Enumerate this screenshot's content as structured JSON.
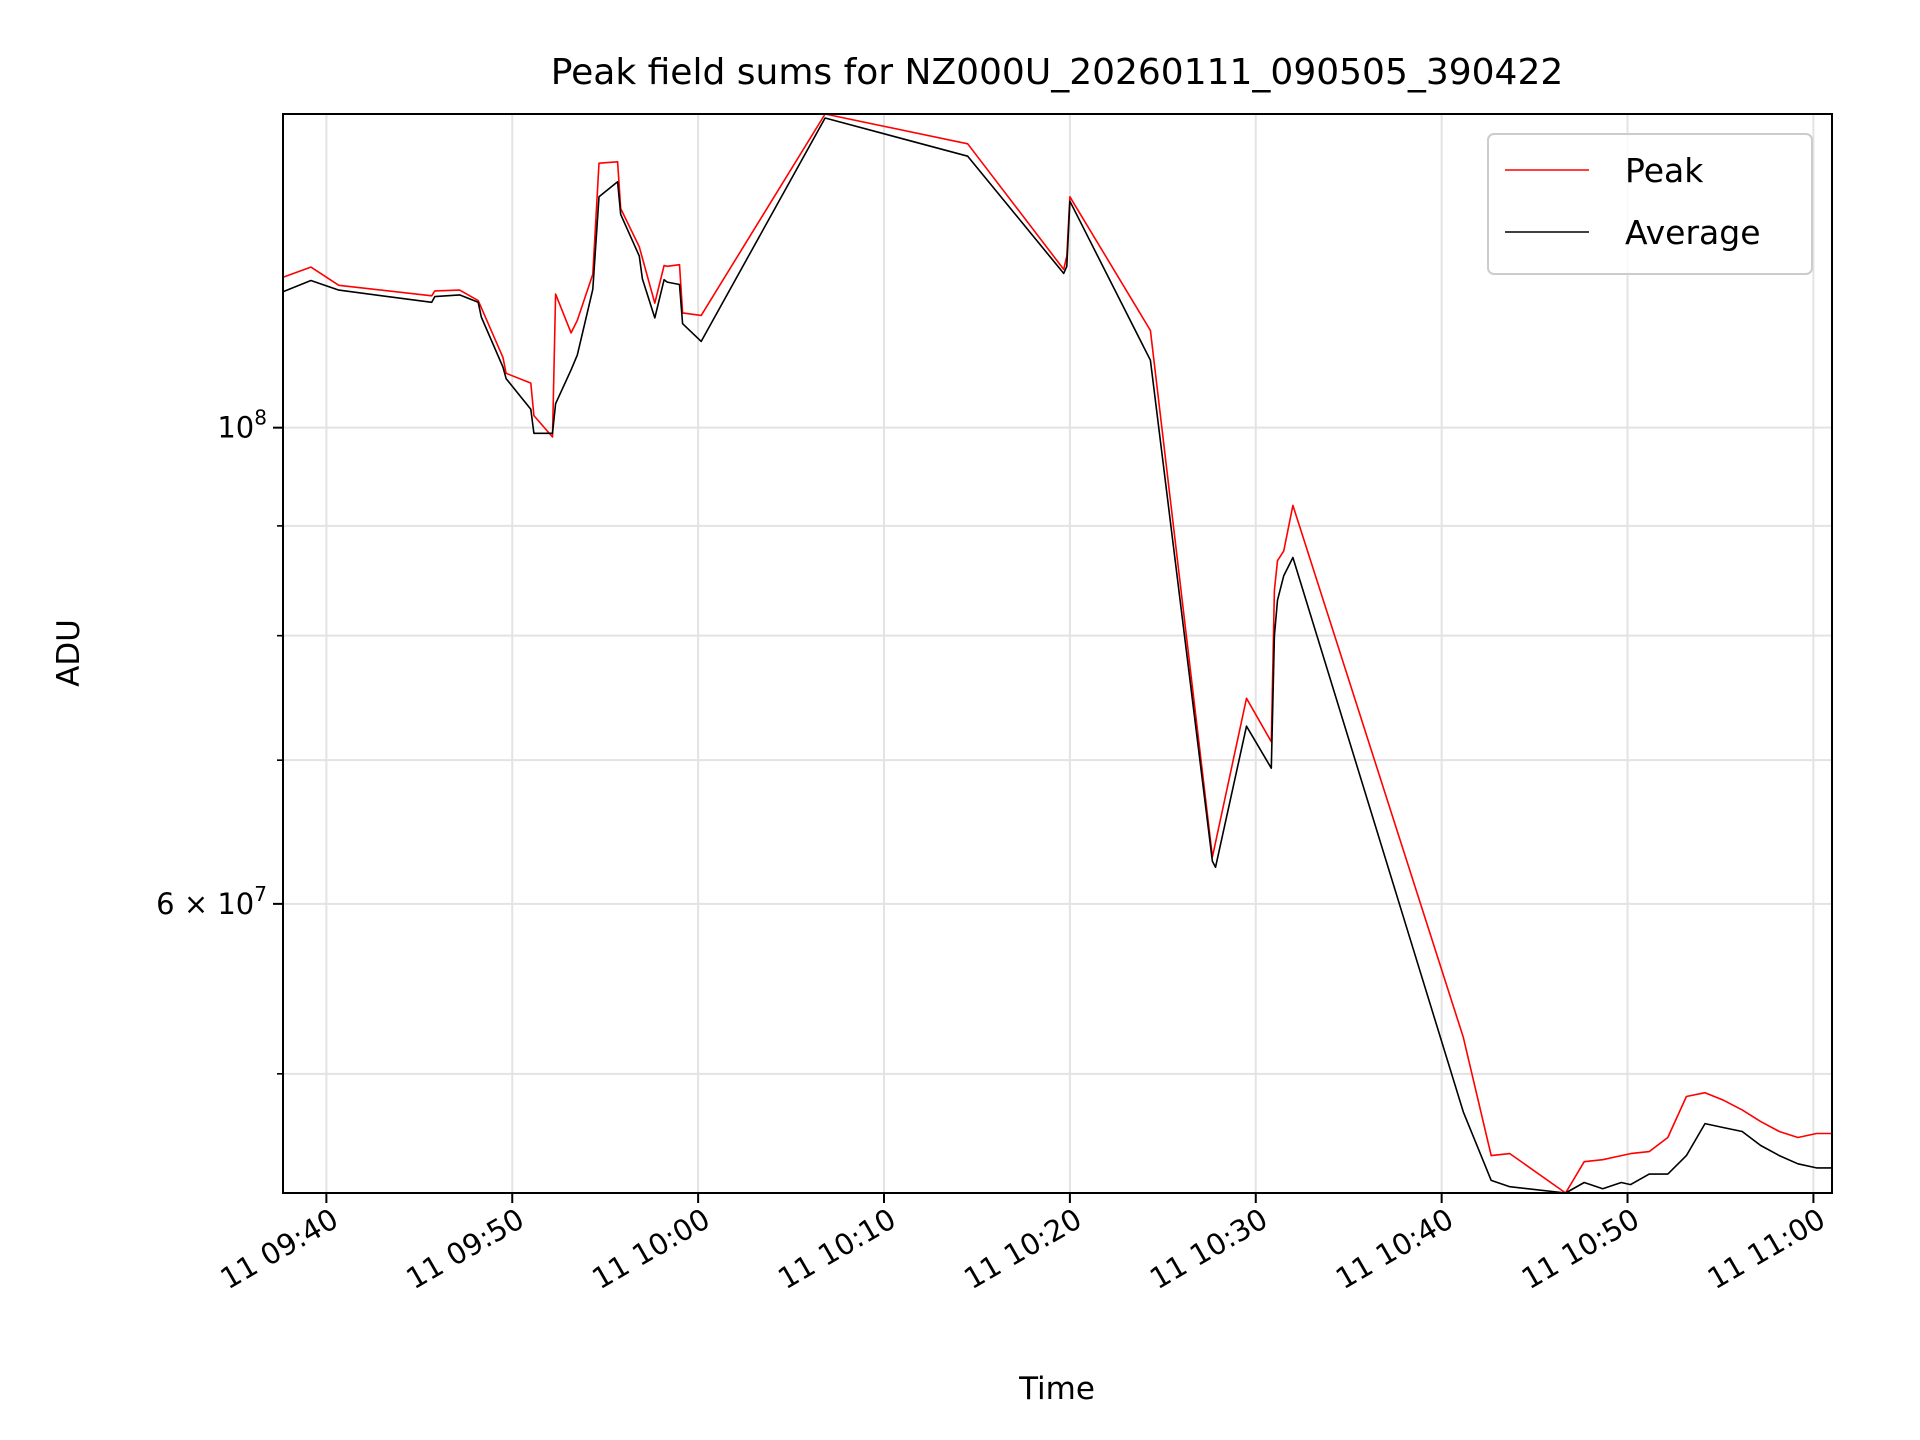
{
  "chart_data": {
    "type": "line",
    "title": "Peak field sums for NZ000U_20260111_090505_390422",
    "xlabel": "Time",
    "ylabel": "ADU",
    "yscale": "log",
    "xlim": [
      "09:37:40",
      "11:01:00"
    ],
    "ylim": [
      44000000,
      140000000
    ],
    "grid": true,
    "legend_position": "upper right",
    "x_ticks": [
      "11 09:40",
      "11 09:50",
      "11 10:00",
      "11 10:10",
      "11 10:20",
      "11 10:30",
      "11 10:40",
      "11 10:50",
      "11 11:00"
    ],
    "y_tick_labels": [
      {
        "value": 100000000,
        "base": "10",
        "exp": "8"
      },
      {
        "value": 60000000,
        "mantissa": "6",
        "times": "×",
        "base": "10",
        "exp": "7"
      }
    ],
    "y_minor_ticks": [
      50000000,
      70000000,
      80000000,
      90000000
    ],
    "series": [
      {
        "name": "Peak",
        "color": "#ff0000",
        "x": [
          "09:37:40",
          "09:39:10",
          "09:40:40",
          "09:45:40",
          "09:45:50",
          "09:47:10",
          "09:48:10",
          "09:49:30",
          "09:49:40",
          "09:51:00",
          "09:51:10",
          "09:52:10",
          "09:52:20",
          "09:53:10",
          "09:53:30",
          "09:54:20",
          "09:54:40",
          "09:55:40",
          "09:55:50",
          "09:56:50",
          "09:57:40",
          "09:58:10",
          "09:58:20",
          "09:59:00",
          "09:59:10",
          "10:00:10",
          "10:06:50",
          "10:14:30",
          "10:19:40",
          "10:19:50",
          "10:20:00",
          "10:24:20",
          "10:27:40",
          "10:29:30",
          "10:30:50",
          "10:31:00",
          "10:31:10",
          "10:31:30",
          "10:32:00",
          "10:41:10",
          "10:42:40",
          "10:43:40",
          "10:46:40",
          "10:47:40",
          "10:48:40",
          "10:49:40",
          "10:50:10",
          "10:51:10",
          "10:52:10",
          "10:53:10",
          "10:54:10",
          "10:55:10",
          "10:56:10",
          "10:57:10",
          "10:58:10",
          "10:59:10",
          "11:00:10",
          "11:01:00"
        ],
        "values": [
          117500000,
          118800000,
          116500000,
          115200000,
          115800000,
          115900000,
          114600000,
          107800000,
          106000000,
          104900000,
          101300000,
          99000000,
          115400000,
          110700000,
          112200000,
          117900000,
          132800000,
          133000000,
          126500000,
          121400000,
          114300000,
          119000000,
          118900000,
          119100000,
          113100000,
          112800000,
          140000000,
          135600000,
          118500000,
          120200000,
          128100000,
          111000000,
          63100000,
          74800000,
          71400000,
          84000000,
          86700000,
          87600000,
          92000000,
          52000000,
          45800000,
          45900000,
          44000000,
          45500000,
          45600000,
          45800000,
          45900000,
          46000000,
          46700000,
          48800000,
          49000000,
          48600000,
          48100000,
          47500000,
          47000000,
          46700000,
          46900000,
          46900000
        ]
      },
      {
        "name": "Average",
        "color": "#000000",
        "x": [
          "09:37:40",
          "09:39:10",
          "09:40:40",
          "09:45:40",
          "09:45:50",
          "09:47:10",
          "09:48:10",
          "09:48:20",
          "09:49:30",
          "09:49:40",
          "09:51:00",
          "09:51:10",
          "09:52:10",
          "09:52:20",
          "09:53:10",
          "09:53:30",
          "09:54:20",
          "09:54:40",
          "09:55:40",
          "09:55:50",
          "09:56:50",
          "09:57:00",
          "09:57:40",
          "09:58:10",
          "09:58:20",
          "09:59:00",
          "09:59:10",
          "10:00:10",
          "10:06:50",
          "10:14:30",
          "10:19:40",
          "10:19:50",
          "10:20:00",
          "10:24:20",
          "10:27:40",
          "10:27:50",
          "10:29:30",
          "10:30:50",
          "10:31:00",
          "10:31:10",
          "10:31:30",
          "10:32:00",
          "10:41:10",
          "10:42:40",
          "10:43:40",
          "10:46:40",
          "10:47:40",
          "10:48:40",
          "10:49:40",
          "10:50:10",
          "10:51:10",
          "10:52:10",
          "10:53:10",
          "10:54:10",
          "10:55:10",
          "10:56:10",
          "10:57:10",
          "10:58:10",
          "10:59:10",
          "11:00:10",
          "11:01:00"
        ],
        "values": [
          115700000,
          117100000,
          115900000,
          114400000,
          115100000,
          115300000,
          114400000,
          112600000,
          106700000,
          105400000,
          102000000,
          99400000,
          99400000,
          102600000,
          106400000,
          108100000,
          116000000,
          128100000,
          130200000,
          125700000,
          120200000,
          117300000,
          112500000,
          117200000,
          116900000,
          116600000,
          111800000,
          109700000,
          139400000,
          133800000,
          118000000,
          118900000,
          127500000,
          107500000,
          62800000,
          62400000,
          72600000,
          69400000,
          80000000,
          83100000,
          85300000,
          87000000,
          48000000,
          44600000,
          44300000,
          44000000,
          44500000,
          44200000,
          44500000,
          44400000,
          44900000,
          44900000,
          45800000,
          47400000,
          47200000,
          47000000,
          46300000,
          45800000,
          45400000,
          45200000,
          45200000
        ]
      }
    ]
  }
}
